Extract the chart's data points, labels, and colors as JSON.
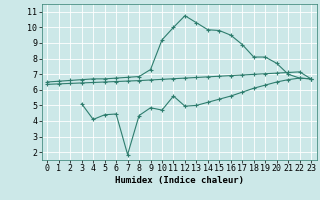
{
  "line1_x": [
    0,
    1,
    2,
    3,
    4,
    5,
    6,
    7,
    8,
    9,
    10,
    11,
    12,
    13,
    14,
    15,
    16,
    17,
    18,
    19,
    20,
    21,
    22,
    23
  ],
  "line1_y": [
    6.5,
    6.55,
    6.6,
    6.65,
    6.7,
    6.7,
    6.75,
    6.8,
    6.85,
    7.3,
    9.2,
    10.0,
    10.75,
    10.3,
    9.85,
    9.8,
    9.5,
    8.9,
    8.1,
    8.1,
    7.7,
    7.0,
    6.75,
    6.7
  ],
  "line2_x": [
    0,
    1,
    2,
    3,
    4,
    5,
    6,
    7,
    8,
    9,
    10,
    11,
    12,
    13,
    14,
    15,
    16,
    17,
    18,
    19,
    20,
    21,
    22,
    23
  ],
  "line2_y": [
    6.35,
    6.38,
    6.41,
    6.44,
    6.47,
    6.5,
    6.53,
    6.56,
    6.59,
    6.63,
    6.67,
    6.71,
    6.75,
    6.79,
    6.83,
    6.87,
    6.91,
    6.95,
    6.99,
    7.03,
    7.07,
    7.11,
    7.15,
    6.7
  ],
  "line3_x": [
    3,
    4,
    5,
    6,
    7,
    8,
    9,
    10,
    11,
    12,
    13,
    14,
    15,
    16,
    17,
    18,
    19,
    20,
    21,
    22,
    23
  ],
  "line3_y": [
    5.1,
    4.1,
    4.4,
    4.45,
    1.85,
    4.35,
    4.85,
    4.7,
    5.6,
    4.95,
    5.0,
    5.2,
    5.4,
    5.6,
    5.85,
    6.1,
    6.3,
    6.5,
    6.65,
    6.75,
    6.7
  ],
  "line_color": "#2e7d6e",
  "bg_color": "#cce8e8",
  "grid_color": "#ffffff",
  "xlabel": "Humidex (Indice chaleur)",
  "xlim": [
    -0.5,
    23.5
  ],
  "ylim": [
    1.5,
    11.5
  ],
  "xticks": [
    0,
    1,
    2,
    3,
    4,
    5,
    6,
    7,
    8,
    9,
    10,
    11,
    12,
    13,
    14,
    15,
    16,
    17,
    18,
    19,
    20,
    21,
    22,
    23
  ],
  "yticks": [
    2,
    3,
    4,
    5,
    6,
    7,
    8,
    9,
    10,
    11
  ],
  "xlabel_fontsize": 6.5,
  "tick_fontsize": 6.0,
  "marker": "+"
}
